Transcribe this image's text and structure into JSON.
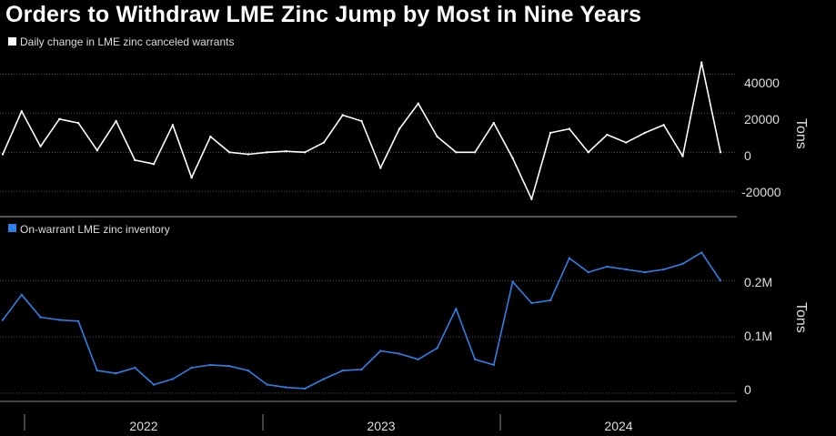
{
  "title": "Orders to Withdraw LME Zinc Jump by Most in Nine Years",
  "colors": {
    "background": "#000000",
    "series1": "#ffffff",
    "series2": "#2f7fe6"
  },
  "x_axis_labels": [
    "2022",
    "2023",
    "2024"
  ],
  "chart_data": [
    {
      "type": "line",
      "title": "Daily change in LME zinc canceled warrants",
      "series": [
        {
          "name": "Daily change in LME zinc canceled warrants"
        }
      ],
      "ylabel": "Tons",
      "yticks": [
        "40000",
        "20000",
        "0",
        "-20000"
      ],
      "ylim": [
        -32000,
        50000
      ],
      "xlim": [
        "2021-09",
        "2024-11"
      ],
      "grid": true,
      "legend": "top-left",
      "x": [
        "2021-09",
        "2021-10",
        "2021-11",
        "2021-12",
        "2022-01",
        "2022-02",
        "2022-03",
        "2022-04",
        "2022-05",
        "2022-06",
        "2022-07",
        "2022-08",
        "2022-09",
        "2022-10",
        "2022-11",
        "2022-12",
        "2023-01",
        "2023-02",
        "2023-03",
        "2023-04",
        "2023-05",
        "2023-06",
        "2023-07",
        "2023-08",
        "2023-09",
        "2023-10",
        "2023-11",
        "2023-12",
        "2024-01",
        "2024-02",
        "2024-03",
        "2024-04",
        "2024-05",
        "2024-06",
        "2024-07",
        "2024-08",
        "2024-09",
        "2024-10",
        "2024-11"
      ],
      "values": [
        -1000,
        21000,
        3000,
        17000,
        15000,
        1000,
        16000,
        -4000,
        -6000,
        14000,
        -13000,
        8000,
        0,
        -1000,
        0,
        500,
        0,
        5000,
        19000,
        16000,
        -8000,
        12000,
        25000,
        8000,
        0,
        0,
        15000,
        -3000,
        -24000,
        10000,
        12000,
        0,
        9000,
        5000,
        10000,
        14000,
        -2000,
        46000,
        0
      ]
    },
    {
      "type": "line",
      "title": "On-warrant LME zinc inventory",
      "series": [
        {
          "name": "On-warrant LME zinc inventory"
        }
      ],
      "ylabel": "Tons",
      "yticks": [
        "0.2M",
        "0.1M",
        "0"
      ],
      "ylim": [
        -10000,
        275000
      ],
      "xlim": [
        "2021-09",
        "2024-11"
      ],
      "grid": true,
      "legend": "top-left",
      "x": [
        "2021-09",
        "2021-10",
        "2021-11",
        "2021-12",
        "2022-01",
        "2022-02",
        "2022-03",
        "2022-04",
        "2022-05",
        "2022-06",
        "2022-07",
        "2022-08",
        "2022-09",
        "2022-10",
        "2022-11",
        "2022-12",
        "2023-01",
        "2023-02",
        "2023-03",
        "2023-04",
        "2023-05",
        "2023-06",
        "2023-07",
        "2023-08",
        "2023-09",
        "2023-10",
        "2023-11",
        "2023-12",
        "2024-01",
        "2024-02",
        "2024-03",
        "2024-04",
        "2024-05",
        "2024-06",
        "2024-07",
        "2024-08",
        "2024-09",
        "2024-10",
        "2024-11"
      ],
      "values": [
        130000,
        175000,
        135000,
        130000,
        128000,
        40000,
        35000,
        45000,
        15000,
        25000,
        45000,
        50000,
        48000,
        40000,
        15000,
        10000,
        8000,
        25000,
        40000,
        42000,
        75000,
        70000,
        60000,
        80000,
        150000,
        60000,
        50000,
        198000,
        160000,
        165000,
        240000,
        215000,
        225000,
        220000,
        215000,
        220000,
        230000,
        250000,
        200000
      ]
    }
  ]
}
